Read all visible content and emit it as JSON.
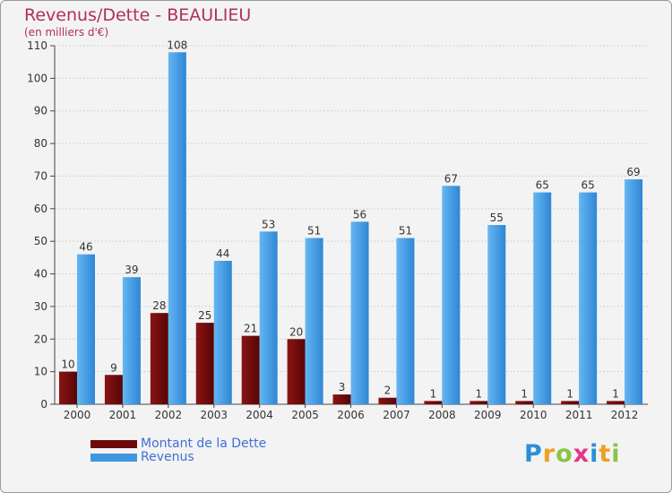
{
  "chart_data": {
    "type": "bar",
    "title": "Revenus/Dette - BEAULIEU",
    "subtitle": "(en milliers d'€)",
    "xlabel": "",
    "ylabel": "",
    "ylim": [
      0,
      110
    ],
    "yticks": [
      0,
      10,
      20,
      30,
      40,
      50,
      60,
      70,
      80,
      90,
      100,
      110
    ],
    "grid": true,
    "legend_position": "bottom-left",
    "categories": [
      "2000",
      "2001",
      "2002",
      "2003",
      "2004",
      "2005",
      "2006",
      "2007",
      "2008",
      "2009",
      "2010",
      "2011",
      "2012"
    ],
    "series": [
      {
        "name": "Montant de la Dette",
        "color": "#6b0a0a",
        "values": [
          10,
          9,
          28,
          25,
          21,
          20,
          3,
          2,
          1,
          1,
          1,
          1,
          1
        ]
      },
      {
        "name": "Revenus",
        "color": "#3f97e0",
        "values": [
          46,
          39,
          108,
          44,
          53,
          51,
          56,
          51,
          67,
          55,
          65,
          65,
          69
        ]
      }
    ]
  },
  "logo": {
    "text": "Proxiti",
    "letters": [
      {
        "ch": "P",
        "color": "#2b8fd6"
      },
      {
        "ch": "r",
        "color": "#f0a020"
      },
      {
        "ch": "o",
        "color": "#8bc34a"
      },
      {
        "ch": "x",
        "color": "#e6358a"
      },
      {
        "ch": "i",
        "color": "#2b8fd6"
      },
      {
        "ch": "t",
        "color": "#f0a020"
      },
      {
        "ch": "i",
        "color": "#8bc34a"
      }
    ]
  }
}
